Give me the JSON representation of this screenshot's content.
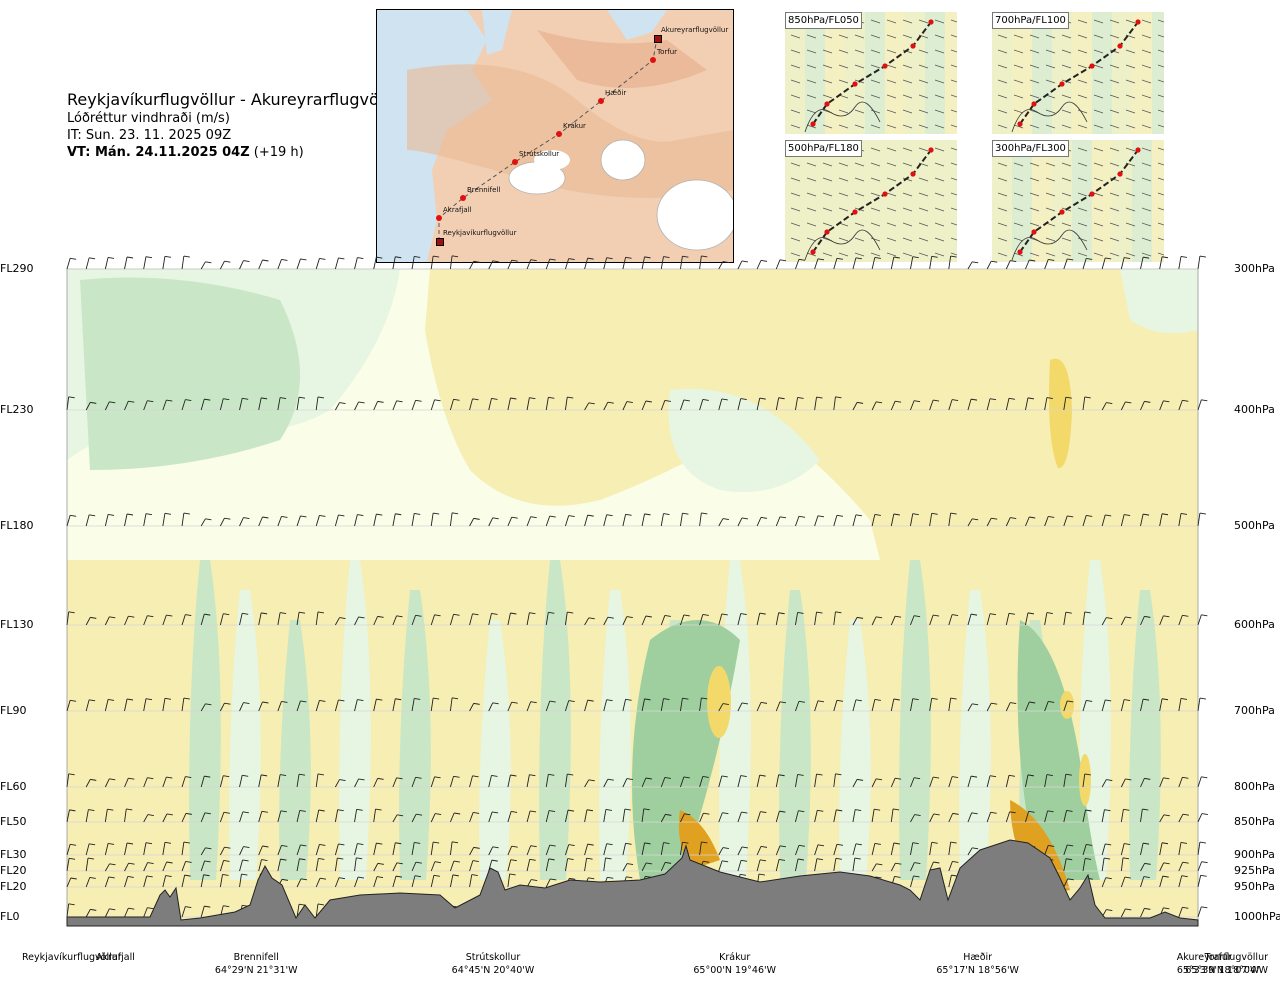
{
  "header": {
    "title": "Reykjavíkurflugvöllur - Akureyrarflugvöllur",
    "parameter": "Lóðréttur vindhraði (m/s)",
    "issue_time": "IT: Sun. 23. 11. 2025 09Z",
    "valid_time": "VT: Mán. 24.11.2025 04Z",
    "lead_time": "(+19 h)"
  },
  "route_map": {
    "points": [
      {
        "name": "Akureyrarflugvöllur",
        "kind": "airport"
      },
      {
        "name": "Torfur",
        "kind": "waypoint"
      },
      {
        "name": "Hæðir",
        "kind": "waypoint"
      },
      {
        "name": "Krákur",
        "kind": "waypoint"
      },
      {
        "name": "Strútskollur",
        "kind": "waypoint"
      },
      {
        "name": "Brennifell",
        "kind": "waypoint"
      },
      {
        "name": "Akrafjall",
        "kind": "waypoint"
      },
      {
        "name": "Reykjavíkurflugvöllur",
        "kind": "airport"
      }
    ]
  },
  "level_maps": [
    {
      "label": "850hPa/FL050"
    },
    {
      "label": "700hPa/FL100"
    },
    {
      "label": "500hPa/FL180"
    },
    {
      "label": "300hPa/FL300"
    }
  ],
  "chart_data": {
    "type": "cross-section",
    "title": "Reykjavíkurflugvöllur - Akureyrarflugvöllur",
    "variable": "Lóðréttur vindhraði (m/s)",
    "levels": [
      {
        "fl": "FL290",
        "hpa": "300hPa",
        "pressure": 300
      },
      {
        "fl": "FL230",
        "hpa": "400hPa",
        "pressure": 400
      },
      {
        "fl": "FL180",
        "hpa": "500hPa",
        "pressure": 500
      },
      {
        "fl": "FL130",
        "hpa": "600hPa",
        "pressure": 600
      },
      {
        "fl": "FL90",
        "hpa": "700hPa",
        "pressure": 700
      },
      {
        "fl": "FL60",
        "hpa": "800hPa",
        "pressure": 800
      },
      {
        "fl": "FL50",
        "hpa": "850hPa",
        "pressure": 850
      },
      {
        "fl": "FL30",
        "hpa": "900hPa",
        "pressure": 900
      },
      {
        "fl": "FL20",
        "hpa": "925hPa",
        "pressure": 925
      },
      {
        "fl": "FL20",
        "hpa": "950hPa",
        "pressure": 950
      },
      {
        "fl": "FL0",
        "hpa": "1000hPa",
        "pressure": 1000
      }
    ],
    "locations": [
      {
        "name": "Reykjavíkurflugvöllur",
        "coord": "",
        "dist": 0.0
      },
      {
        "name": "Akrafjall",
        "coord": "",
        "dist": 0.075
      },
      {
        "name": "Brennifell",
        "coord": "64°29'N 21°31'W",
        "dist": 0.188
      },
      {
        "name": "Strútskollur",
        "coord": "64°45'N 20°40'W",
        "dist": 0.378
      },
      {
        "name": "Krákur",
        "coord": "65°00'N 19°46'W",
        "dist": 0.572
      },
      {
        "name": "Hæðir",
        "coord": "65°17'N 18°56'W",
        "dist": 0.767
      },
      {
        "name": "Torfur",
        "coord": "65°33'N 18°07'W",
        "dist": 0.96
      },
      {
        "name": "Akureyrarflugvöllur",
        "coord": "65°39'N 18°04'W",
        "dist": 1.0
      }
    ]
  }
}
